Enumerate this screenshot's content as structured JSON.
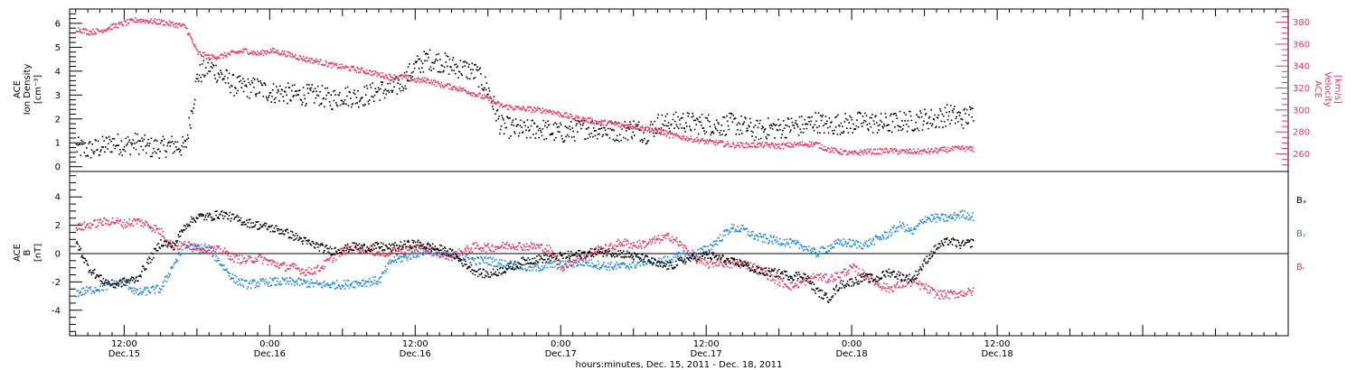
{
  "colors": {
    "axis": "#000000",
    "density": "#000000",
    "velocity": "#e8365f",
    "bx": "#000000",
    "by": "#1f86d6",
    "bz": "#e8365f"
  },
  "x_axis": {
    "title": "hours:minutes, Dec. 15, 2011 - Dec. 18, 2011",
    "range_hours": [
      7.5,
      108
    ],
    "ticks": [
      {
        "hours": 12,
        "time": "12:00",
        "date": "Dec.15"
      },
      {
        "hours": 24,
        "time": "0:00",
        "date": "Dec.16"
      },
      {
        "hours": 36,
        "time": "12:00",
        "date": "Dec.16"
      },
      {
        "hours": 48,
        "time": "0:00",
        "date": "Dec.17"
      },
      {
        "hours": 60,
        "time": "12:00",
        "date": "Dec.17"
      },
      {
        "hours": 72,
        "time": "0:00",
        "date": "Dec.18"
      },
      {
        "hours": 84,
        "time": "12:00",
        "date": "Dec.18"
      }
    ]
  },
  "panel_top": {
    "left_label": [
      "ACE",
      "Ion Density",
      "[cm⁻³]"
    ],
    "right_label": [
      "ACE",
      "Velocity",
      "[km/s]"
    ]
  },
  "panel_bottom": {
    "left_label": [
      "ACE",
      "B",
      "[nT]"
    ],
    "legend": [
      "Bₓ",
      "Bᵧ",
      "Bᵣ"
    ]
  },
  "chart_data": [
    {
      "type": "scatter",
      "title": "",
      "xlabel": "hours:minutes, Dec. 15, 2011 - Dec. 18, 2011",
      "x_unit": "hours since Dec. 15, 2011 00:00",
      "xlim": [
        7.5,
        108
      ],
      "left_axis": {
        "label": "ACE Ion Density [cm⁻³]",
        "ylim": [
          -0.2,
          6.6
        ],
        "ticks": [
          0,
          1,
          2,
          3,
          4,
          5,
          6
        ]
      },
      "right_axis": {
        "label": "ACE Velocity [km/s]",
        "ylim": [
          244,
          392
        ],
        "ticks": [
          260,
          280,
          300,
          320,
          340,
          360,
          380
        ]
      },
      "series": [
        {
          "name": "ACE Ion Density",
          "axis": "left",
          "x": [
            8,
            9,
            10,
            11,
            12,
            13,
            14,
            15,
            16,
            17,
            18,
            19,
            20,
            21,
            22,
            23,
            24,
            25,
            26,
            27,
            28,
            29,
            30,
            31,
            32,
            33,
            34,
            35,
            36,
            37,
            38,
            39,
            40,
            41,
            42,
            43,
            44,
            45,
            46,
            47,
            48,
            49,
            50,
            51,
            52,
            53,
            54,
            55,
            56,
            57,
            58,
            59,
            60,
            61,
            62,
            63,
            64,
            65,
            66,
            67,
            68,
            69,
            70,
            71,
            72,
            73,
            74,
            75,
            76,
            77,
            78,
            79,
            80,
            81,
            82
          ],
          "y": [
            0.8,
            0.7,
            0.8,
            1.0,
            0.9,
            1.0,
            0.8,
            0.8,
            0.9,
            0.8,
            3.8,
            4.2,
            3.8,
            3.4,
            3.3,
            3.3,
            3.1,
            3.1,
            3.0,
            3.0,
            3.0,
            2.8,
            3.0,
            2.9,
            3.0,
            3.2,
            3.2,
            3.6,
            4.2,
            4.5,
            4.4,
            4.2,
            4.1,
            3.9,
            3.2,
            1.7,
            1.6,
            1.5,
            1.6,
            1.5,
            1.4,
            1.5,
            1.6,
            1.6,
            1.5,
            1.5,
            1.6,
            1.4,
            1.8,
            1.8,
            1.9,
            1.8,
            1.8,
            1.7,
            1.8,
            1.7,
            1.5,
            1.6,
            1.6,
            1.7,
            1.7,
            1.9,
            1.7,
            1.8,
            1.8,
            1.9,
            1.8,
            1.8,
            1.9,
            1.9,
            2.0,
            2.0,
            2.2,
            2.0,
            2.2
          ]
        },
        {
          "name": "ACE Velocity",
          "axis": "right",
          "x": [
            8,
            9,
            10,
            11,
            12,
            13,
            14,
            15,
            16,
            17,
            18,
            19,
            20,
            21,
            22,
            23,
            24,
            25,
            26,
            27,
            28,
            29,
            30,
            31,
            32,
            33,
            34,
            35,
            36,
            37,
            38,
            39,
            40,
            41,
            42,
            43,
            44,
            45,
            46,
            47,
            48,
            49,
            50,
            51,
            52,
            53,
            54,
            55,
            56,
            57,
            58,
            59,
            60,
            61,
            62,
            63,
            64,
            65,
            66,
            67,
            68,
            69,
            70,
            71,
            72,
            73,
            74,
            75,
            76,
            77,
            78,
            79,
            80,
            81,
            82
          ],
          "y": [
            374,
            371,
            372,
            376,
            379,
            382,
            381,
            380,
            378,
            376,
            352,
            348,
            349,
            352,
            354,
            351,
            354,
            352,
            349,
            346,
            344,
            341,
            339,
            337,
            335,
            332,
            330,
            330,
            327,
            327,
            323,
            321,
            318,
            314,
            310,
            304,
            302,
            301,
            300,
            299,
            296,
            293,
            291,
            289,
            288,
            286,
            285,
            283,
            281,
            277,
            275,
            273,
            271,
            270,
            268,
            268,
            268,
            268,
            267,
            268,
            269,
            269,
            264,
            262,
            260,
            262,
            262,
            263,
            262,
            262,
            262,
            263,
            264,
            265,
            264
          ]
        }
      ]
    },
    {
      "type": "scatter",
      "title": "",
      "xlabel": "hours:minutes, Dec. 15, 2011 - Dec. 18, 2011",
      "x_unit": "hours since Dec. 15, 2011 00:00",
      "xlim": [
        7.5,
        108
      ],
      "ylabel": "ACE B [nT]",
      "ylim": [
        -5.8,
        5.8
      ],
      "ticks": [
        -4,
        -2,
        0,
        2,
        4
      ],
      "zero_line": true,
      "series": [
        {
          "name": "Bₓ",
          "x": [
            8,
            9,
            10,
            11,
            12,
            13,
            14,
            15,
            16,
            17,
            18,
            19,
            20,
            21,
            22,
            23,
            24,
            25,
            26,
            27,
            28,
            29,
            30,
            31,
            32,
            33,
            34,
            35,
            36,
            37,
            38,
            39,
            40,
            41,
            42,
            43,
            44,
            45,
            46,
            47,
            48,
            49,
            50,
            51,
            52,
            53,
            54,
            55,
            56,
            57,
            58,
            59,
            60,
            61,
            62,
            63,
            64,
            65,
            66,
            67,
            68,
            69,
            70,
            71,
            72,
            73,
            74,
            75,
            76,
            77,
            78,
            79,
            80,
            81,
            82
          ],
          "y": [
            0.8,
            -1.0,
            -1.8,
            -2.2,
            -2.0,
            -1.8,
            -0.5,
            0.8,
            0.5,
            2.0,
            2.6,
            2.6,
            2.8,
            2.5,
            2.2,
            2.0,
            1.8,
            1.6,
            1.2,
            0.8,
            0.5,
            0.2,
            0.3,
            0.5,
            0.4,
            0.5,
            0.4,
            0.6,
            0.7,
            0.5,
            0.3,
            0.0,
            -0.7,
            -1.3,
            -1.5,
            -1.2,
            -0.9,
            -0.5,
            -0.4,
            -0.3,
            -0.2,
            -0.1,
            0.0,
            0.1,
            0.1,
            0.0,
            -0.2,
            -0.4,
            -0.8,
            -0.9,
            -0.5,
            -0.3,
            -0.1,
            -0.3,
            -0.6,
            -0.7,
            -1.2,
            -1.3,
            -1.4,
            -1.6,
            -1.5,
            -2.6,
            -3.2,
            -2.2,
            -2.0,
            -1.7,
            -1.8,
            -1.3,
            -1.6,
            -1.8,
            -0.6,
            0.5,
            0.9,
            0.6,
            0.8
          ]
        },
        {
          "name": "Bᵧ",
          "x": [
            8,
            9,
            10,
            11,
            12,
            13,
            14,
            15,
            16,
            17,
            18,
            19,
            20,
            21,
            22,
            23,
            24,
            25,
            26,
            27,
            28,
            29,
            30,
            31,
            32,
            33,
            34,
            35,
            36,
            37,
            38,
            39,
            40,
            41,
            42,
            43,
            44,
            45,
            46,
            47,
            48,
            49,
            50,
            51,
            52,
            53,
            54,
            55,
            56,
            57,
            58,
            59,
            60,
            61,
            62,
            63,
            64,
            65,
            66,
            67,
            68,
            69,
            70,
            71,
            72,
            73,
            74,
            75,
            76,
            77,
            78,
            79,
            80,
            81,
            82
          ],
          "y": [
            -2.8,
            -2.6,
            -2.4,
            -2.2,
            -2.0,
            -2.8,
            -2.6,
            -2.5,
            -0.8,
            0.5,
            0.4,
            0.3,
            -0.8,
            -1.8,
            -2.2,
            -2.1,
            -2.0,
            -2.0,
            -2.0,
            -2.1,
            -2.2,
            -2.2,
            -2.2,
            -2.1,
            -2.0,
            -1.9,
            -0.5,
            -0.3,
            0.0,
            0.2,
            0.0,
            -0.2,
            -0.3,
            -0.5,
            -0.5,
            -0.7,
            -0.8,
            -1.0,
            -1.0,
            -0.8,
            -0.8,
            -0.7,
            -0.6,
            -0.8,
            -0.9,
            -0.9,
            -0.8,
            -0.5,
            -0.6,
            -0.4,
            -0.1,
            0.0,
            0.3,
            1.0,
            1.8,
            1.7,
            1.2,
            1.0,
            0.9,
            0.7,
            0.5,
            0.0,
            0.4,
            0.8,
            0.7,
            0.6,
            1.0,
            1.4,
            2.0,
            1.5,
            2.5,
            2.5,
            2.5,
            2.8,
            2.6
          ]
        },
        {
          "name": "Bᵣ",
          "x": [
            8,
            9,
            10,
            11,
            12,
            13,
            14,
            15,
            16,
            17,
            18,
            19,
            20,
            21,
            22,
            23,
            24,
            25,
            26,
            27,
            28,
            29,
            30,
            31,
            32,
            33,
            34,
            35,
            36,
            37,
            38,
            39,
            40,
            41,
            42,
            43,
            44,
            45,
            46,
            47,
            48,
            49,
            50,
            51,
            52,
            53,
            54,
            55,
            56,
            57,
            58,
            59,
            60,
            61,
            62,
            63,
            64,
            65,
            66,
            67,
            68,
            69,
            70,
            71,
            72,
            73,
            74,
            75,
            76,
            77,
            78,
            79,
            80,
            81,
            82
          ],
          "y": [
            1.8,
            2.0,
            2.2,
            2.3,
            2.1,
            2.3,
            2.0,
            1.5,
            0.5,
            0.6,
            0.5,
            0.3,
            0.2,
            -0.3,
            -0.5,
            -0.3,
            -0.6,
            -0.9,
            -1.0,
            -1.3,
            -1.1,
            -0.4,
            0.2,
            0.4,
            0.3,
            0.0,
            0.1,
            0.2,
            0.4,
            0.3,
            0.0,
            -0.2,
            0.2,
            0.5,
            0.4,
            0.5,
            0.6,
            0.5,
            0.5,
            0.3,
            -1.0,
            -0.5,
            -0.2,
            0.3,
            0.4,
            0.8,
            0.6,
            0.7,
            1.0,
            1.2,
            0.5,
            -0.3,
            -0.8,
            -0.6,
            -0.8,
            -0.7,
            -1.0,
            -1.5,
            -2.0,
            -2.3,
            -2.0,
            -1.6,
            -1.8,
            -1.5,
            -1.0,
            -1.5,
            -2.1,
            -2.5,
            -2.2,
            -2.0,
            -2.4,
            -2.9,
            -2.9,
            -2.8,
            -2.7
          ]
        }
      ]
    }
  ]
}
